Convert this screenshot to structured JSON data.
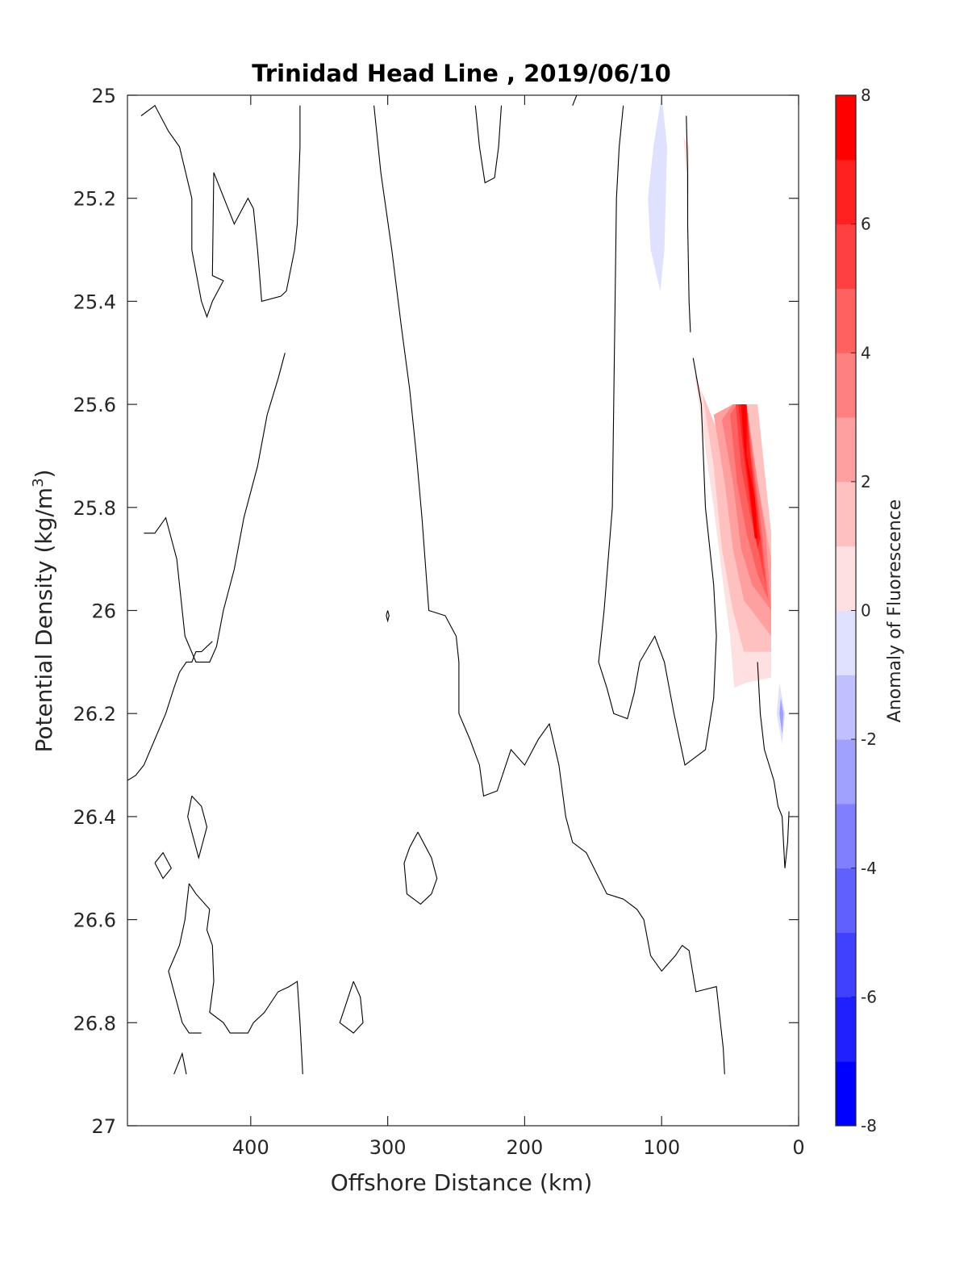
{
  "chart_data": {
    "type": "contour",
    "title": "Trinidad Head Line , 2019/06/10",
    "xlabel": "Offshore Distance (km)",
    "ylabel_main": "Potential Density (kg/m",
    "ylabel_sup": "3",
    "ylabel_close": ")",
    "colorbar_label": "Anomaly of Fluorescence",
    "xlim": [
      490,
      0
    ],
    "ylim": [
      25,
      27
    ],
    "x_reversed": true,
    "y_reversed": true,
    "xticks": [
      400,
      300,
      200,
      100,
      0
    ],
    "xtick_labels": [
      "400",
      "300",
      "200",
      "100",
      "0"
    ],
    "yticks": [
      25,
      25.2,
      25.4,
      25.6,
      25.8,
      26,
      26.2,
      26.4,
      26.6,
      26.8,
      27
    ],
    "ytick_labels": [
      "25",
      "25.2",
      "25.4",
      "25.6",
      "25.8",
      "26",
      "26.2",
      "26.4",
      "26.6",
      "26.8",
      "27"
    ],
    "colorbar_ticks": [
      8,
      6,
      4,
      2,
      0,
      -2,
      -4,
      -6,
      -8
    ],
    "colorbar_tick_labels": [
      "8",
      "6",
      "4",
      "2",
      "0",
      "-2",
      "-4",
      "-6",
      "-8"
    ],
    "colorbar_levels": [
      -8,
      -7,
      -6,
      -5,
      -4,
      -3,
      -2,
      -1,
      1,
      2,
      3,
      4,
      5,
      6,
      7,
      8
    ],
    "colorbar_colors": [
      "#0000ff",
      "#2020ff",
      "#4040ff",
      "#6060ff",
      "#8080ff",
      "#a0a0ff",
      "#c0c0ff",
      "#e0e0ff",
      "#ffffff",
      "#ffe0e0",
      "#ffc0c0",
      "#ffa0a0",
      "#ff8080",
      "#ff6060",
      "#ff4040",
      "#ff2020",
      "#ff0000"
    ],
    "zero_contours": [
      [
        [
          480,
          25.04
        ],
        [
          470,
          25.02
        ],
        [
          460,
          25.07
        ],
        [
          452,
          25.1
        ],
        [
          443,
          25.2
        ],
        [
          443,
          25.3
        ],
        [
          436,
          25.4
        ],
        [
          432,
          25.43
        ],
        [
          428,
          25.4
        ],
        [
          420,
          25.36
        ],
        [
          428,
          25.35
        ],
        [
          427,
          25.15
        ],
        [
          412,
          25.25
        ],
        [
          402,
          25.2
        ],
        [
          398,
          25.22
        ],
        [
          395,
          25.3
        ],
        [
          392,
          25.4
        ],
        [
          378,
          25.39
        ],
        [
          374,
          25.38
        ],
        [
          368,
          25.3
        ],
        [
          366,
          25.25
        ],
        [
          364,
          25.1
        ],
        [
          364,
          25.02
        ]
      ],
      [
        [
          310,
          25.02
        ],
        [
          305,
          25.15
        ],
        [
          297,
          25.3
        ],
        [
          290,
          25.45
        ],
        [
          284,
          25.57
        ],
        [
          279,
          25.7
        ],
        [
          275,
          25.82
        ],
        [
          270,
          26
        ],
        [
          258,
          26.01
        ],
        [
          250,
          26.05
        ],
        [
          248,
          26.1
        ],
        [
          248,
          26.2
        ],
        [
          240,
          26.25
        ],
        [
          233,
          26.3
        ],
        [
          230,
          26.36
        ],
        [
          220,
          26.35
        ],
        [
          210,
          26.27
        ],
        [
          200,
          26.3
        ],
        [
          190,
          26.25
        ],
        [
          182,
          26.22
        ],
        [
          175,
          26.3
        ],
        [
          170,
          26.4
        ],
        [
          165,
          26.45
        ],
        [
          155,
          26.47
        ],
        [
          140,
          26.55
        ],
        [
          128,
          26.56
        ],
        [
          118,
          26.58
        ],
        [
          113,
          26.6
        ],
        [
          108,
          26.67
        ],
        [
          100,
          26.7
        ],
        [
          90,
          26.67
        ],
        [
          85,
          26.65
        ],
        [
          80,
          26.66
        ],
        [
          75,
          26.74
        ],
        [
          60,
          26.73
        ],
        [
          55,
          26.85
        ],
        [
          54,
          26.9
        ]
      ],
      [
        [
          478,
          25.85
        ],
        [
          470,
          25.85
        ],
        [
          462,
          25.82
        ],
        [
          454,
          25.9
        ],
        [
          448,
          26.05
        ],
        [
          440,
          26.1
        ],
        [
          430,
          26.1
        ],
        [
          425,
          26.07
        ],
        [
          420,
          26
        ],
        [
          412,
          25.92
        ],
        [
          405,
          25.82
        ],
        [
          395,
          25.72
        ],
        [
          388,
          25.62
        ],
        [
          380,
          25.55
        ],
        [
          375,
          25.5
        ]
      ],
      [
        [
          490,
          26.33
        ],
        [
          484,
          26.32
        ],
        [
          478,
          26.3
        ],
        [
          462,
          26.2
        ],
        [
          456,
          26.15
        ],
        [
          452,
          26.12
        ],
        [
          447,
          26.1
        ],
        [
          443,
          26.1
        ],
        [
          440,
          26.08
        ],
        [
          436,
          26.08
        ],
        [
          428,
          26.06
        ]
      ],
      [
        [
          236,
          25.02
        ],
        [
          233,
          25.1
        ],
        [
          229,
          25.17
        ],
        [
          222,
          25.16
        ],
        [
          219,
          25.1
        ],
        [
          217,
          25.02
        ]
      ],
      [
        [
          165,
          25.02
        ],
        [
          162,
          25.0
        ]
      ],
      [
        [
          128,
          25.02
        ],
        [
          131,
          25.1
        ],
        [
          133,
          25.2
        ],
        [
          134,
          25.4
        ],
        [
          135,
          25.6
        ],
        [
          136,
          25.8
        ],
        [
          139,
          25.9
        ],
        [
          142,
          26
        ],
        [
          146,
          26.1
        ],
        [
          140,
          26.15
        ],
        [
          135,
          26.2
        ],
        [
          125,
          26.21
        ],
        [
          120,
          26.16
        ],
        [
          116,
          26.1
        ],
        [
          105,
          26.05
        ],
        [
          98,
          26.1
        ],
        [
          91,
          26.2
        ],
        [
          83,
          26.3
        ],
        [
          68,
          26.27
        ],
        [
          62,
          26.17
        ],
        [
          60,
          26.05
        ],
        [
          62,
          25.95
        ],
        [
          68,
          25.8
        ],
        [
          71,
          25.6
        ],
        [
          77,
          25.51
        ]
      ],
      [
        [
          82,
          25.04
        ],
        [
          81,
          25.15
        ],
        [
          81,
          25.25
        ],
        [
          80,
          25.4
        ],
        [
          79,
          25.46
        ]
      ],
      [
        [
          30,
          26.1
        ],
        [
          28,
          26.2
        ],
        [
          25,
          26.27
        ],
        [
          18,
          26.33
        ],
        [
          15,
          26.38
        ],
        [
          12,
          26.4
        ],
        [
          10,
          26.5
        ],
        [
          8,
          26.45
        ],
        [
          7,
          26.39
        ]
      ],
      [
        [
          300,
          26.0
        ],
        [
          299,
          26.01
        ],
        [
          300,
          26.02
        ],
        [
          301,
          26.01
        ],
        [
          300,
          26.0
        ]
      ],
      [
        [
          443,
          26.36
        ],
        [
          436,
          26.38
        ],
        [
          432,
          26.42
        ],
        [
          438,
          26.48
        ],
        [
          446,
          26.4
        ],
        [
          443,
          26.36
        ]
      ],
      [
        [
          470,
          26.49
        ],
        [
          464,
          26.52
        ],
        [
          458,
          26.5
        ],
        [
          464,
          26.47
        ],
        [
          470,
          26.49
        ]
      ],
      [
        [
          278,
          26.43
        ],
        [
          284,
          26.46
        ],
        [
          288,
          26.49
        ],
        [
          286,
          26.55
        ],
        [
          276,
          26.57
        ],
        [
          268,
          26.55
        ],
        [
          264,
          26.52
        ],
        [
          268,
          26.48
        ],
        [
          278,
          26.43
        ]
      ],
      [
        [
          445,
          26.53
        ],
        [
          440,
          26.55
        ],
        [
          430,
          26.58
        ],
        [
          432,
          26.62
        ],
        [
          428,
          26.65
        ],
        [
          427,
          26.72
        ],
        [
          430,
          26.78
        ],
        [
          420,
          26.8
        ],
        [
          415,
          26.82
        ],
        [
          402,
          26.82
        ],
        [
          398,
          26.8
        ],
        [
          390,
          26.78
        ],
        [
          380,
          26.74
        ],
        [
          372,
          26.73
        ],
        [
          366,
          26.72
        ],
        [
          364,
          26.8
        ],
        [
          362,
          26.9
        ]
      ],
      [
        [
          445,
          26.53
        ],
        [
          448,
          26.6
        ],
        [
          452,
          26.65
        ],
        [
          460,
          26.7
        ],
        [
          455,
          26.75
        ],
        [
          450,
          26.8
        ],
        [
          445,
          26.82
        ],
        [
          436,
          26.82
        ]
      ],
      [
        [
          325,
          26.72
        ],
        [
          320,
          26.75
        ],
        [
          318,
          26.8
        ],
        [
          325,
          26.82
        ],
        [
          335,
          26.8
        ],
        [
          330,
          26.76
        ],
        [
          325,
          26.72
        ]
      ],
      [
        [
          456,
          26.9
        ],
        [
          450,
          26.86
        ],
        [
          447,
          26.9
        ]
      ]
    ],
    "filled_regions": [
      {
        "level": 1,
        "polygon": [
          [
            76,
            25.54
          ],
          [
            70,
            25.65
          ],
          [
            62,
            25.8
          ],
          [
            55,
            25.95
          ],
          [
            50,
            26.05
          ],
          [
            47,
            26.15
          ],
          [
            38,
            26.14
          ],
          [
            20,
            26.13
          ],
          [
            20,
            25.85
          ],
          [
            30,
            25.6
          ],
          [
            45,
            25.6
          ],
          [
            55,
            25.68
          ],
          [
            76,
            25.54
          ]
        ]
      },
      {
        "level": 2,
        "polygon": [
          [
            70,
            25.58
          ],
          [
            62,
            25.72
          ],
          [
            56,
            25.88
          ],
          [
            48,
            26.0
          ],
          [
            40,
            26.08
          ],
          [
            20,
            26.08
          ],
          [
            20,
            25.85
          ],
          [
            30,
            25.6
          ],
          [
            45,
            25.6
          ],
          [
            55,
            25.68
          ],
          [
            70,
            25.58
          ]
        ]
      },
      {
        "level": 3,
        "polygon": [
          [
            62,
            25.62
          ],
          [
            54,
            25.75
          ],
          [
            48,
            25.88
          ],
          [
            40,
            25.98
          ],
          [
            20,
            26.05
          ],
          [
            20,
            25.9
          ],
          [
            30,
            25.75
          ],
          [
            40,
            25.6
          ],
          [
            48,
            25.6
          ],
          [
            62,
            25.62
          ]
        ]
      },
      {
        "level": 4,
        "polygon": [
          [
            56,
            25.63
          ],
          [
            48,
            25.75
          ],
          [
            42,
            25.88
          ],
          [
            34,
            25.95
          ],
          [
            20,
            26.0
          ],
          [
            24,
            25.85
          ],
          [
            30,
            25.75
          ],
          [
            38,
            25.6
          ],
          [
            48,
            25.6
          ],
          [
            56,
            25.63
          ]
        ]
      },
      {
        "level": 5,
        "polygon": [
          [
            50,
            25.62
          ],
          [
            45,
            25.75
          ],
          [
            38,
            25.85
          ],
          [
            30,
            25.93
          ],
          [
            22,
            25.98
          ],
          [
            28,
            25.82
          ],
          [
            33,
            25.72
          ],
          [
            38,
            25.6
          ],
          [
            45,
            25.6
          ],
          [
            50,
            25.62
          ]
        ]
      },
      {
        "level": 6,
        "polygon": [
          [
            46,
            25.6
          ],
          [
            42,
            25.72
          ],
          [
            35,
            25.82
          ],
          [
            28,
            25.9
          ],
          [
            24,
            25.95
          ],
          [
            30,
            25.8
          ],
          [
            35,
            25.7
          ],
          [
            38,
            25.6
          ],
          [
            46,
            25.6
          ]
        ]
      },
      {
        "level": 7,
        "polygon": [
          [
            44,
            25.6
          ],
          [
            40,
            25.7
          ],
          [
            35,
            25.8
          ],
          [
            30,
            25.88
          ],
          [
            28,
            25.86
          ],
          [
            32,
            25.78
          ],
          [
            36,
            25.68
          ],
          [
            38,
            25.6
          ],
          [
            44,
            25.6
          ]
        ]
      },
      {
        "level": 8,
        "polygon": [
          [
            42,
            25.6
          ],
          [
            38,
            25.6
          ],
          [
            38,
            25.7
          ],
          [
            32,
            25.78
          ],
          [
            30,
            25.86
          ],
          [
            32,
            25.86
          ],
          [
            36,
            25.76
          ],
          [
            40,
            25.68
          ],
          [
            42,
            25.6
          ]
        ]
      },
      {
        "level": 1,
        "polygon": [
          [
            84,
            25.08
          ],
          [
            82,
            25.15
          ],
          [
            81,
            25.28
          ],
          [
            80,
            25.1
          ],
          [
            84,
            25.08
          ]
        ]
      },
      {
        "level": -1,
        "polygon": [
          [
            100,
            25.0
          ],
          [
            106,
            25.1
          ],
          [
            110,
            25.2
          ],
          [
            108,
            25.3
          ],
          [
            101,
            25.38
          ],
          [
            98,
            25.3
          ],
          [
            96,
            25.1
          ],
          [
            100,
            25.0
          ]
        ]
      },
      {
        "level": -1,
        "polygon": [
          [
            14,
            26.14
          ],
          [
            16,
            26.2
          ],
          [
            12,
            26.26
          ],
          [
            10,
            26.2
          ],
          [
            14,
            26.14
          ]
        ]
      },
      {
        "level": -3,
        "polygon": [
          [
            13,
            26.17
          ],
          [
            14,
            26.2
          ],
          [
            12,
            26.24
          ],
          [
            11,
            26.2
          ],
          [
            13,
            26.17
          ]
        ]
      }
    ]
  }
}
